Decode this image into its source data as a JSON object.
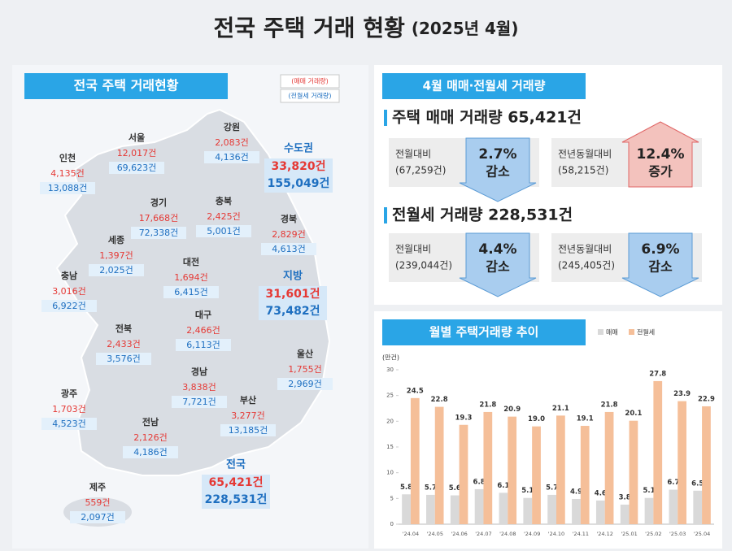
{
  "header": {
    "title": "전국 주택 거래 현황",
    "subtitle": "(2025년 4월)"
  },
  "map": {
    "title": "전국 주택 거래현황",
    "legend": [
      "(매매 거래량)",
      "(전월세 거래량)"
    ],
    "regions": [
      {
        "name": "인천",
        "sale": "4,135건",
        "rent": "13,088건"
      },
      {
        "name": "서울",
        "sale": "12,017건",
        "rent": "69,623건"
      },
      {
        "name": "강원",
        "sale": "2,083건",
        "rent": "4,136건"
      },
      {
        "name": "수도권",
        "sale": "33,820건",
        "rent": "155,049건"
      },
      {
        "name": "경기",
        "sale": "17,668건",
        "rent": "72,338건"
      },
      {
        "name": "충북",
        "sale": "2,425건",
        "rent": "5,001건"
      },
      {
        "name": "경북",
        "sale": "2,829건",
        "rent": "4,613건"
      },
      {
        "name": "세종",
        "sale": "1,397건",
        "rent": "2,025건"
      },
      {
        "name": "대전",
        "sale": "1,694건",
        "rent": "6,415건"
      },
      {
        "name": "충남",
        "sale": "3,016건",
        "rent": "6,922건"
      },
      {
        "name": "지방",
        "sale": "31,601건",
        "rent": "73,482건"
      },
      {
        "name": "대구",
        "sale": "2,466건",
        "rent": "6,113건"
      },
      {
        "name": "전북",
        "sale": "2,433건",
        "rent": "3,576건"
      },
      {
        "name": "울산",
        "sale": "1,755건",
        "rent": "2,969건"
      },
      {
        "name": "경남",
        "sale": "3,838건",
        "rent": "7,721건"
      },
      {
        "name": "광주",
        "sale": "1,703건",
        "rent": "4,523건"
      },
      {
        "name": "부산",
        "sale": "3,277건",
        "rent": "13,185건"
      },
      {
        "name": "전남",
        "sale": "2,126건",
        "rent": "4,186건"
      },
      {
        "name": "전국",
        "sale": "65,421건",
        "rent": "228,531건"
      },
      {
        "name": "제주",
        "sale": "559건",
        "rent": "2,097건"
      }
    ]
  },
  "summary": {
    "title": "4월 매매·전월세 거래량",
    "sections": [
      {
        "heading": "주택 매매 거래량 65,421건",
        "comparisons": [
          {
            "label": "전월대비",
            "base": "(67,259건)",
            "rate": "2.7%",
            "direction": "감소"
          },
          {
            "label": "전년동월대비",
            "base": "(58,215건)",
            "rate": "12.4%",
            "direction": "증가"
          }
        ]
      },
      {
        "heading": "전월세 거래량 228,531건",
        "comparisons": [
          {
            "label": "전월대비",
            "base": "(239,044건)",
            "rate": "4.4%",
            "direction": "감소"
          },
          {
            "label": "전년동월대비",
            "base": "(245,405건)",
            "rate": "6.9%",
            "direction": "감소"
          }
        ]
      }
    ]
  },
  "chart_data": {
    "type": "bar",
    "title": "월별 주택거래량 추이",
    "y_label": "(만건)",
    "categories": [
      "'24.04",
      "'24.05",
      "'24.06",
      "'24.07",
      "'24.08",
      "'24.09",
      "'24.10",
      "'24.11",
      "'24.12",
      "'25.01",
      "'25.02",
      "'25.03",
      "'25.04"
    ],
    "series": [
      {
        "name": "매매",
        "color": "#d9d9d9",
        "values": [
          5.8,
          5.7,
          5.6,
          6.8,
          6.1,
          5.1,
          5.7,
          4.9,
          4.6,
          3.8,
          5.1,
          6.7,
          6.5
        ]
      },
      {
        "name": "전월세",
        "color": "#f5bf99",
        "values": [
          24.5,
          22.8,
          19.3,
          21.8,
          20.9,
          19.0,
          21.1,
          19.1,
          21.8,
          20.1,
          27.8,
          23.9,
          22.9
        ],
        "value_labels": [
          "24.5",
          "22.8",
          "19.3",
          "21.8",
          "20.9",
          "19.0",
          "21.1",
          "19.1",
          "21.8",
          "20.1",
          "27.8",
          "23.9",
          "22.9"
        ]
      }
    ],
    "ylim": [
      0,
      30
    ],
    "yticks": [
      0,
      5,
      10,
      15,
      20,
      25,
      30
    ],
    "grid": false
  }
}
